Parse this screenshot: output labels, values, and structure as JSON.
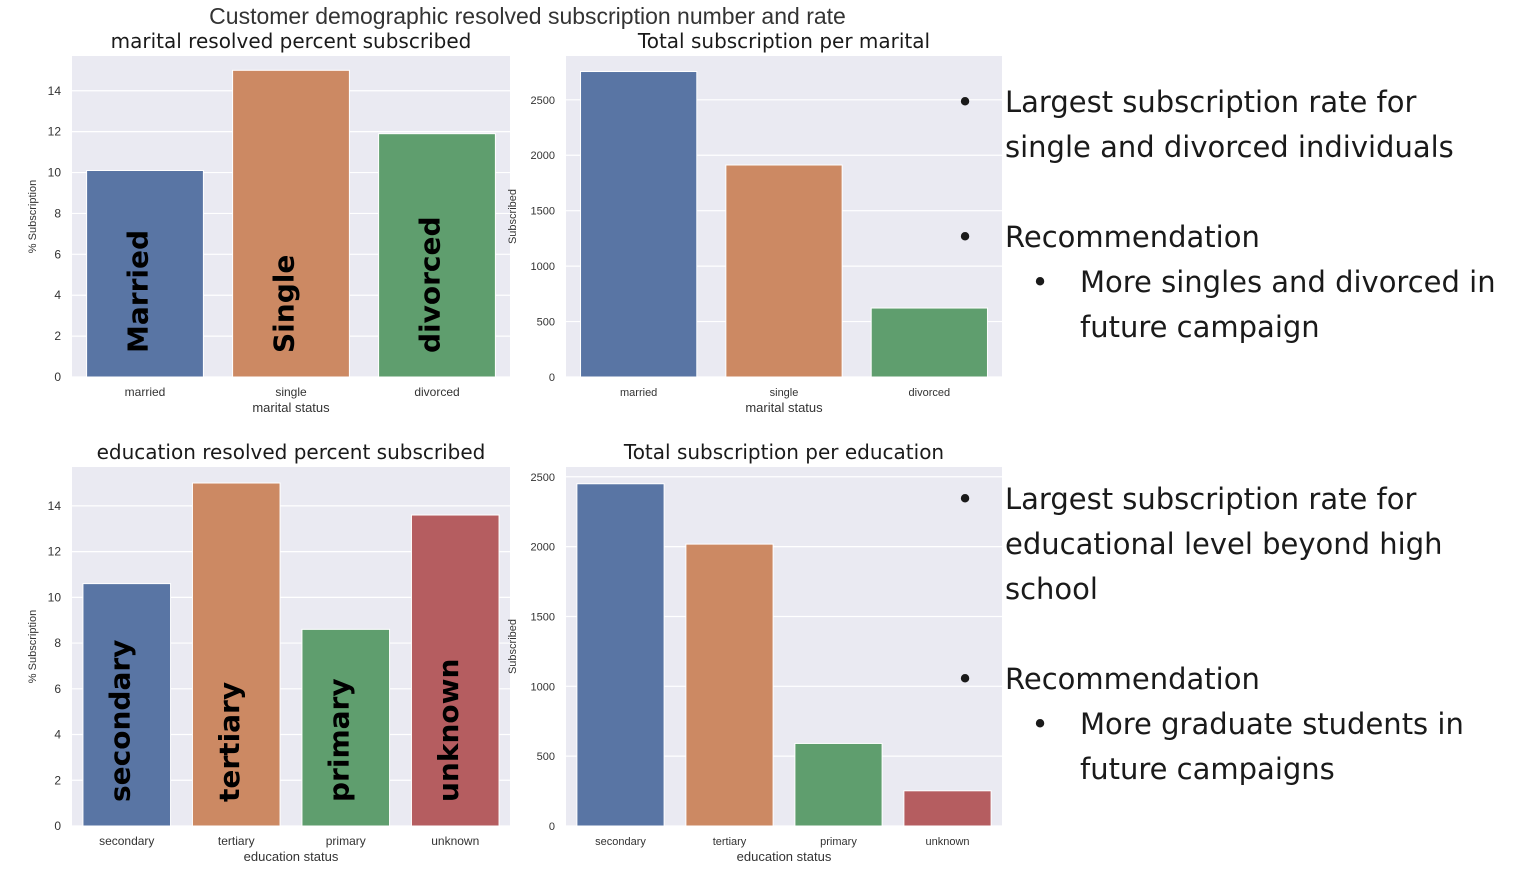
{
  "figure_title": "Customer demographic resolved subscription number and rate",
  "colors": [
    "#5975a4",
    "#cc8963",
    "#5f9e6e",
    "#b55d60"
  ],
  "chart_data": [
    {
      "type": "bar",
      "title": "marital resolved percent subscribed",
      "xlabel": "marital status",
      "ylabel": "% Subscription",
      "categories": [
        "married",
        "single",
        "divorced"
      ],
      "values": [
        10.1,
        15.0,
        11.9
      ],
      "bar_labels": [
        "Married",
        "Single",
        "divorced"
      ],
      "ylim": [
        0,
        15.7
      ],
      "yticks": [
        0,
        2,
        4,
        6,
        8,
        10,
        12,
        14
      ],
      "grid": true
    },
    {
      "type": "bar",
      "title": "Total subscription per marital",
      "xlabel": "marital status",
      "ylabel": "Subscribed",
      "categories": [
        "married",
        "single",
        "divorced"
      ],
      "values": [
        2755,
        1912,
        622
      ],
      "ylim": [
        0,
        2895
      ],
      "yticks": [
        0,
        500,
        1000,
        1500,
        2000,
        2500
      ],
      "grid": true
    },
    {
      "type": "bar",
      "title": "education resolved percent subscribed",
      "xlabel": "education status",
      "ylabel": "% Subscription",
      "categories": [
        "secondary",
        "tertiary",
        "primary",
        "unknown"
      ],
      "values": [
        10.6,
        15.0,
        8.6,
        13.6
      ],
      "bar_labels": [
        "secondary",
        "tertiary",
        "primary",
        "unknown"
      ],
      "ylim": [
        0,
        15.7
      ],
      "yticks": [
        0,
        2,
        4,
        6,
        8,
        10,
        12,
        14
      ],
      "grid": true
    },
    {
      "type": "bar",
      "title": "Total subscription per education",
      "xlabel": "education status",
      "ylabel": "Subscribed",
      "categories": [
        "secondary",
        "tertiary",
        "primary",
        "unknown"
      ],
      "values": [
        2450,
        2018,
        591,
        252
      ],
      "ylim": [
        0,
        2570
      ],
      "yticks": [
        0,
        500,
        1000,
        1500,
        2000,
        2500
      ],
      "grid": true
    }
  ],
  "notes": {
    "marital": {
      "finding": "Largest subscription rate for single and divorced individuals",
      "rec_label": "Recommendation",
      "rec": "More singles and divorced in future campaign"
    },
    "education": {
      "finding": "Largest subscription rate for educational level beyond high school",
      "rec_label": "Recommendation",
      "rec": "More graduate students in future campaigns"
    }
  }
}
